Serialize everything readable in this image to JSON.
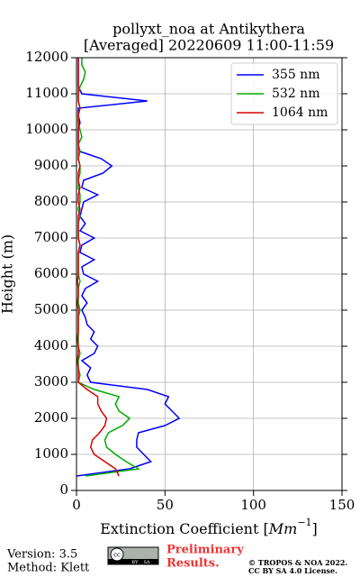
{
  "chart_data": {
    "type": "line",
    "title": [
      "pollyxt_noa at Antikythera",
      "[Averaged] 20220609 11:00-11:59"
    ],
    "xlabel_parts": [
      "Extinction Coefficient [",
      "Mm",
      "−1",
      "]"
    ],
    "ylabel": "Height (m)",
    "y": [
      400,
      600,
      800,
      1000,
      1200,
      1400,
      1600,
      1800,
      2000,
      2200,
      2400,
      2600,
      2800,
      3000,
      3200,
      3400,
      3600,
      3800,
      4000,
      4200,
      4400,
      4600,
      4800,
      5000,
      5200,
      5400,
      5600,
      5800,
      6000,
      6200,
      6400,
      6600,
      6800,
      7000,
      7200,
      7400,
      7600,
      7800,
      8000,
      8200,
      8400,
      8600,
      8800,
      9000,
      9200,
      9400,
      9600,
      9800,
      10000,
      10200,
      10400,
      10600,
      10800,
      11000,
      11200,
      11400,
      11600,
      11800,
      12000
    ],
    "series": [
      {
        "name": "355 nm",
        "color": "#0000ff",
        "values": [
          0,
          30,
          42,
          38,
          34,
          34,
          35,
          50,
          58,
          54,
          50,
          52,
          40,
          8,
          6,
          8,
          3,
          10,
          12,
          8,
          10,
          6,
          5,
          3,
          6,
          3,
          5,
          12,
          4,
          3,
          10,
          2,
          3,
          10,
          2,
          5,
          2,
          3,
          4,
          12,
          3,
          4,
          15,
          20,
          14,
          2,
          1,
          1,
          1,
          2,
          1,
          1,
          40,
          3,
          1,
          1,
          1,
          1,
          1
        ]
      },
      {
        "name": "532 nm",
        "color": "#00aa00",
        "values": [
          5,
          35,
          28,
          22,
          17,
          16,
          18,
          26,
          30,
          24,
          22,
          24,
          10,
          1,
          2,
          1,
          1,
          2,
          1,
          1,
          1,
          1,
          1,
          2,
          1,
          1,
          1,
          2,
          1,
          1,
          1,
          1,
          2,
          1,
          1,
          1,
          2,
          1,
          2,
          2,
          1,
          1,
          2,
          2,
          1,
          2,
          1,
          3,
          2,
          1,
          1,
          2,
          1,
          1,
          2,
          4,
          5,
          3,
          3
        ]
      },
      {
        "name": "1064 nm",
        "color": "#dd0000",
        "values": [
          24,
          22,
          16,
          10,
          8,
          9,
          13,
          16,
          17,
          14,
          12,
          12,
          6,
          1,
          1,
          1,
          0.5,
          1,
          1,
          0.5,
          1,
          1,
          1,
          1,
          0.5,
          1,
          1,
          0.5,
          1,
          1,
          1,
          1,
          2,
          1,
          1,
          1,
          1,
          2,
          1,
          1,
          2,
          1,
          1,
          2,
          1,
          1,
          1,
          1,
          1,
          1,
          1,
          2,
          1,
          1,
          1,
          1,
          1,
          1,
          1
        ]
      }
    ],
    "xlim": [
      0,
      150
    ],
    "xticks": [
      0,
      50,
      100,
      150
    ],
    "ylim": [
      0,
      12000
    ],
    "yticks": [
      0,
      1000,
      2000,
      3000,
      4000,
      5000,
      6000,
      7000,
      8000,
      9000,
      10000,
      11000,
      12000
    ],
    "grid": true,
    "legend": "upper right"
  },
  "footer": {
    "version": "Version: 3.5",
    "method": "Method: Klett",
    "logo": [
      "cc",
      "BY",
      "SA"
    ],
    "preliminary": [
      "Preliminary",
      "Results."
    ],
    "copyright": [
      "© TROPOS & NOA 2022.",
      "CC BY SA 4.0 License."
    ]
  }
}
